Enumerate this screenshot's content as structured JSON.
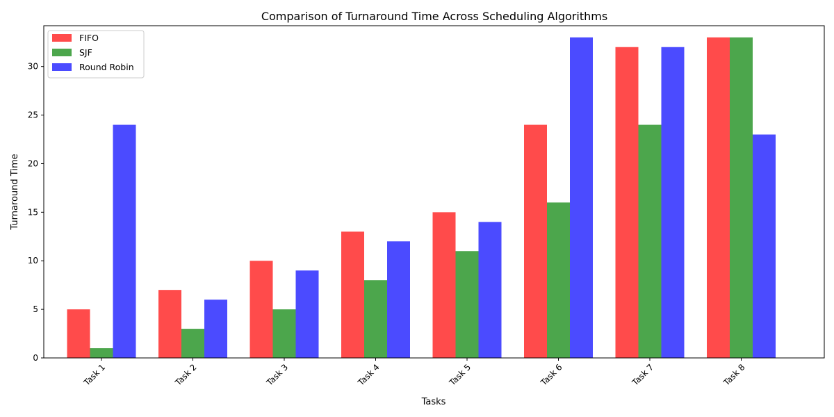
{
  "chart_data": {
    "type": "bar",
    "title": "Comparison of Turnaround Time Across Scheduling Algorithms",
    "xlabel": "Tasks",
    "ylabel": "Turnaround Time",
    "categories": [
      "Task 1",
      "Task 2",
      "Task 3",
      "Task 4",
      "Task 5",
      "Task 6",
      "Task 7",
      "Task 8"
    ],
    "series": [
      {
        "name": "FIFO",
        "color": "#ff4b4b",
        "values": [
          5,
          7,
          10,
          13,
          15,
          24,
          32,
          33
        ]
      },
      {
        "name": "SJF",
        "color": "#4ca64c",
        "values": [
          1,
          3,
          5,
          8,
          11,
          16,
          24,
          33
        ]
      },
      {
        "name": "Round Robin",
        "color": "#4b4bff",
        "values": [
          24,
          6,
          9,
          12,
          14,
          33,
          32,
          23
        ]
      }
    ],
    "ylim": [
      0,
      34.2
    ],
    "yticks": [
      0,
      5,
      10,
      15,
      20,
      25,
      30
    ],
    "legend": "top-left",
    "grid": false
  }
}
